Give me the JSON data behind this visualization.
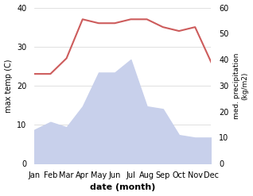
{
  "months": [
    "Jan",
    "Feb",
    "Mar",
    "Apr",
    "May",
    "Jun",
    "Jul",
    "Aug",
    "Sep",
    "Oct",
    "Nov",
    "Dec"
  ],
  "temperature": [
    23,
    23,
    27,
    37,
    36,
    36,
    37,
    37,
    35,
    34,
    35,
    26
  ],
  "precipitation": [
    13,
    16,
    14,
    22,
    35,
    35,
    40,
    22,
    21,
    11,
    10,
    10
  ],
  "temp_color": "#cd5c5c",
  "precip_fill_color": "#c8d0eb",
  "temp_ylim": [
    0,
    40
  ],
  "precip_ylim": [
    0,
    60
  ],
  "xlabel": "date (month)",
  "ylabel_left": "max temp (C)",
  "ylabel_right": "med. precipitation\n(kg/m2)",
  "temp_yticks": [
    0,
    10,
    20,
    30,
    40
  ],
  "precip_yticks": [
    0,
    10,
    20,
    30,
    40,
    50,
    60
  ],
  "figsize": [
    3.18,
    2.47
  ],
  "dpi": 100
}
